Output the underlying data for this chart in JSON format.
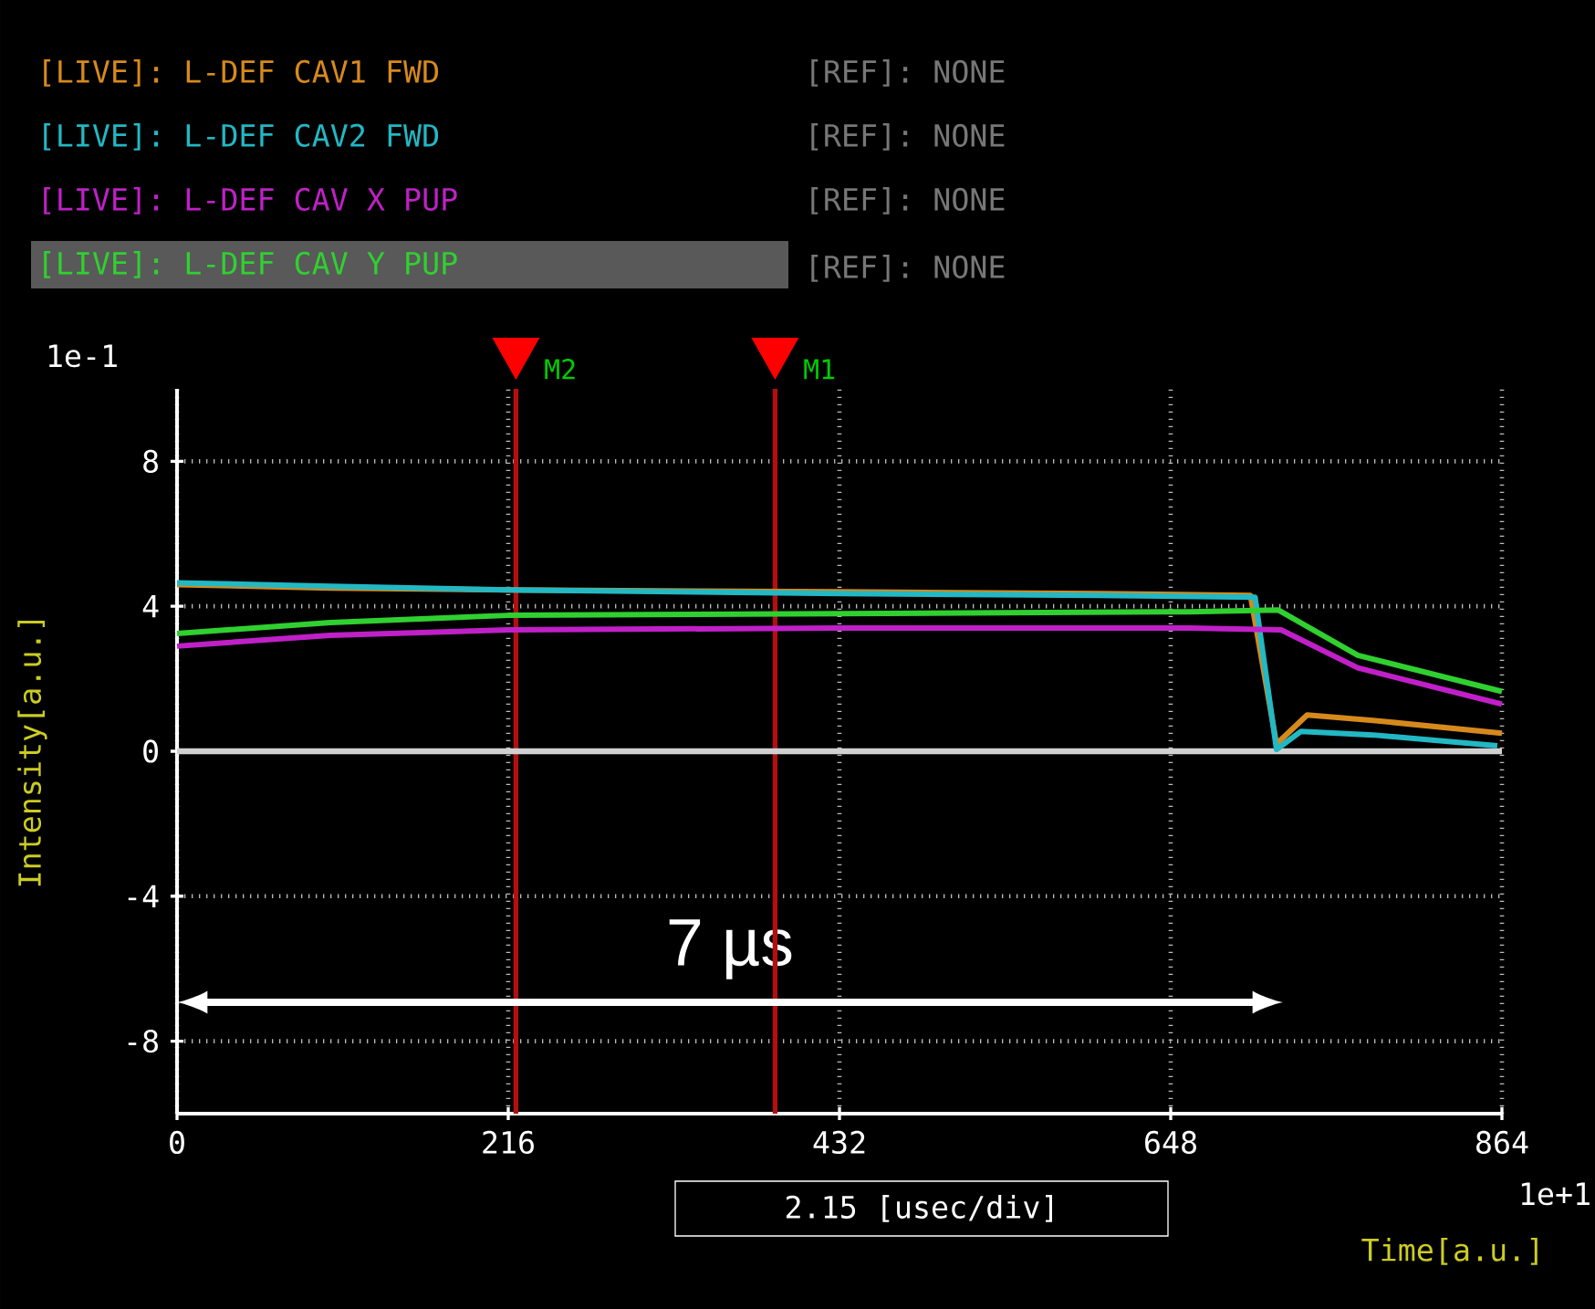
{
  "chart_data": {
    "type": "line",
    "xlabel": "Time[a.u.]",
    "ylabel": "Intensity[a.u.]",
    "xlim": [
      0,
      864
    ],
    "xticks": [
      0,
      216,
      432,
      648,
      864
    ],
    "ylim": [
      -10,
      10
    ],
    "yticks": [
      -8,
      -4,
      0,
      4,
      8
    ],
    "grid": true,
    "legend": "top left",
    "series": [
      {
        "name": "[LIVE]: L-DEF CAV1 FWD",
        "color": "#d68a1c",
        "x": [
          0,
          100,
          216,
          432,
          600,
          700,
          717,
          737,
          780,
          864
        ],
        "values": [
          4.6,
          4.5,
          4.45,
          4.4,
          4.35,
          4.3,
          0.2,
          1.0,
          0.85,
          0.5
        ]
      },
      {
        "name": "[LIVE]: L-DEF CAV2 FWD",
        "color": "#22b8c4",
        "x": [
          0,
          100,
          216,
          432,
          600,
          703,
          717,
          733,
          780,
          861
        ],
        "values": [
          4.65,
          4.55,
          4.45,
          4.35,
          4.3,
          4.25,
          0.05,
          0.55,
          0.45,
          0.15
        ]
      },
      {
        "name": "[LIVE]: L-DEF CAV X PUP",
        "color": "#c020c8",
        "x": [
          0,
          100,
          216,
          432,
          660,
          720,
          770,
          864
        ],
        "values": [
          2.9,
          3.2,
          3.35,
          3.4,
          3.4,
          3.35,
          2.3,
          1.3
        ]
      },
      {
        "name": "[LIVE]: L-DEF CAV Y PUP",
        "color": "#30d030",
        "x": [
          0,
          100,
          216,
          432,
          660,
          718,
          770,
          864
        ],
        "values": [
          3.25,
          3.55,
          3.75,
          3.8,
          3.85,
          3.9,
          2.65,
          1.65
        ]
      }
    ],
    "ref_lines": [
      {
        "axis": "x",
        "value": 221,
        "label": "M2",
        "color": "#b01010"
      },
      {
        "axis": "x",
        "value": 390,
        "label": "M1",
        "color": "#b01010"
      },
      {
        "axis": "y",
        "value": 0,
        "color": "#d0d0d0"
      }
    ],
    "annotations": [
      "[REF]: NONE",
      "[REF]: NONE",
      "[REF]: NONE",
      "[REF]: NONE",
      "1e-1",
      "1e+1",
      "2.15 [usec/div]",
      "7 µs"
    ]
  }
}
